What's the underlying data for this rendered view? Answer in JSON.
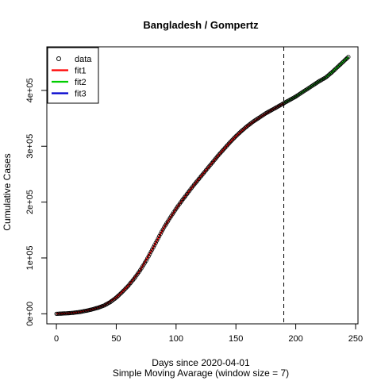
{
  "chart_data": {
    "type": "scatter",
    "title": "Bangladesh / Gompertz",
    "xlabel": "Days since 2020-04-01",
    "xlabel2": "Simple Moving Avarage (window size = 7)",
    "ylabel": "Cumulative Cases",
    "xlim": [
      -8,
      252
    ],
    "ylim": [
      -18000,
      478000
    ],
    "x_ticks": [
      0,
      50,
      100,
      150,
      200,
      250
    ],
    "x_tick_labels": [
      "0",
      "50",
      "100",
      "150",
      "200",
      "250"
    ],
    "y_ticks": [
      0,
      100000,
      200000,
      300000,
      400000
    ],
    "y_tick_labels": [
      "0e+00",
      "1e+05",
      "2e+05",
      "3e+05",
      "4e+05"
    ],
    "vline_x": 190,
    "grid": false,
    "legend_position": "top-left",
    "legend": [
      "data",
      "fit1",
      "fit2",
      "fit3"
    ],
    "colors": {
      "data": "#000000",
      "fit1": "#ff0000",
      "fit2": "#00cd00",
      "fit3": "#0000cd"
    },
    "data_points": {
      "x": [
        0,
        5,
        10,
        15,
        20,
        25,
        30,
        35,
        40,
        45,
        50,
        55,
        60,
        65,
        70,
        75,
        80,
        85,
        90,
        95,
        100,
        105,
        110,
        115,
        120,
        125,
        130,
        135,
        140,
        145,
        150,
        155,
        160,
        165,
        170,
        175,
        180,
        185,
        190,
        195,
        200,
        205,
        210,
        215,
        220,
        225,
        230,
        235,
        240,
        244
      ],
      "y": [
        0,
        500,
        1000,
        2000,
        3500,
        5500,
        8000,
        11000,
        15000,
        21000,
        29000,
        39000,
        50000,
        63000,
        78000,
        95000,
        115000,
        135000,
        155000,
        172000,
        188000,
        203000,
        217000,
        231000,
        244000,
        257000,
        270000,
        283000,
        295000,
        307000,
        318000,
        328000,
        337000,
        345000,
        352000,
        359000,
        365000,
        371000,
        377000,
        383000,
        389000,
        396000,
        403000,
        410000,
        417000,
        423000,
        432000,
        442000,
        452000,
        460000
      ]
    },
    "fit1": {
      "x": [
        0,
        10,
        20,
        30,
        40,
        50,
        60,
        70,
        80,
        90,
        100,
        110,
        120,
        130,
        140,
        150,
        160,
        170,
        180,
        190
      ],
      "y": [
        0,
        1000,
        3500,
        8000,
        15000,
        29000,
        50000,
        78000,
        115000,
        155000,
        188000,
        217000,
        244000,
        270000,
        295000,
        318000,
        337000,
        352000,
        365000,
        377000
      ]
    },
    "fit2": {
      "x": [
        190,
        195,
        200,
        205,
        210,
        215,
        220,
        225,
        230,
        235,
        240,
        244
      ],
      "y": [
        377000,
        383000,
        389000,
        396000,
        403000,
        410000,
        417000,
        423000,
        432000,
        442000,
        452000,
        460000
      ]
    }
  }
}
